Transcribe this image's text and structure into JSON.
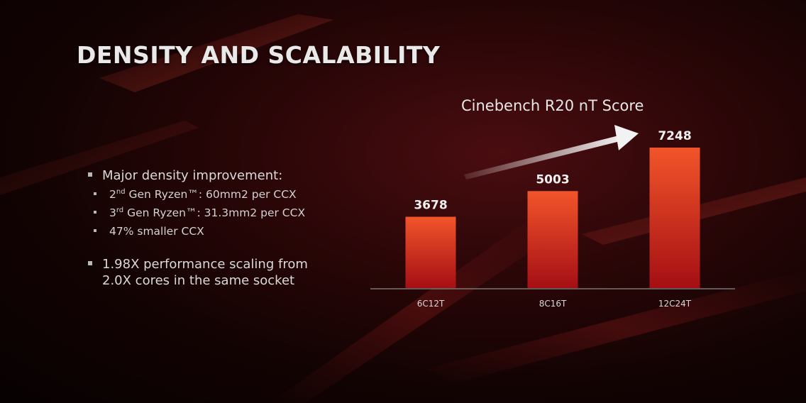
{
  "slide": {
    "title": "DENSITY AND SCALABILITY"
  },
  "bullets": {
    "main1": "Major density improvement:",
    "sub1_ordinal": "2",
    "sub1_sup": "nd",
    "sub1_rest": " Gen Ryzen™: 60mm2 per CCX",
    "sub2_ordinal": "3",
    "sub2_sup": "rd",
    "sub2_rest": " Gen Ryzen™: 31.3mm2 per CCX",
    "sub3": "47% smaller CCX",
    "main2_line1": "1.98X performance scaling from",
    "main2_line2": "2.0X cores in the same socket"
  },
  "colors": {
    "bar_top": "#f2552a",
    "bar_bottom": "#a50f14",
    "axis": "#8a8a8a",
    "label": "#f0f0f0"
  },
  "chart_data": {
    "type": "bar",
    "title": "Cinebench R20 nT Score",
    "categories": [
      "6C12T",
      "8C16T",
      "12C24T"
    ],
    "values": [
      3678,
      5003,
      7248
    ],
    "xlabel": "",
    "ylabel": "",
    "ylim": [
      0,
      7248
    ],
    "grid": false,
    "legend": "none",
    "annotation": "rising-trend-arrow"
  }
}
